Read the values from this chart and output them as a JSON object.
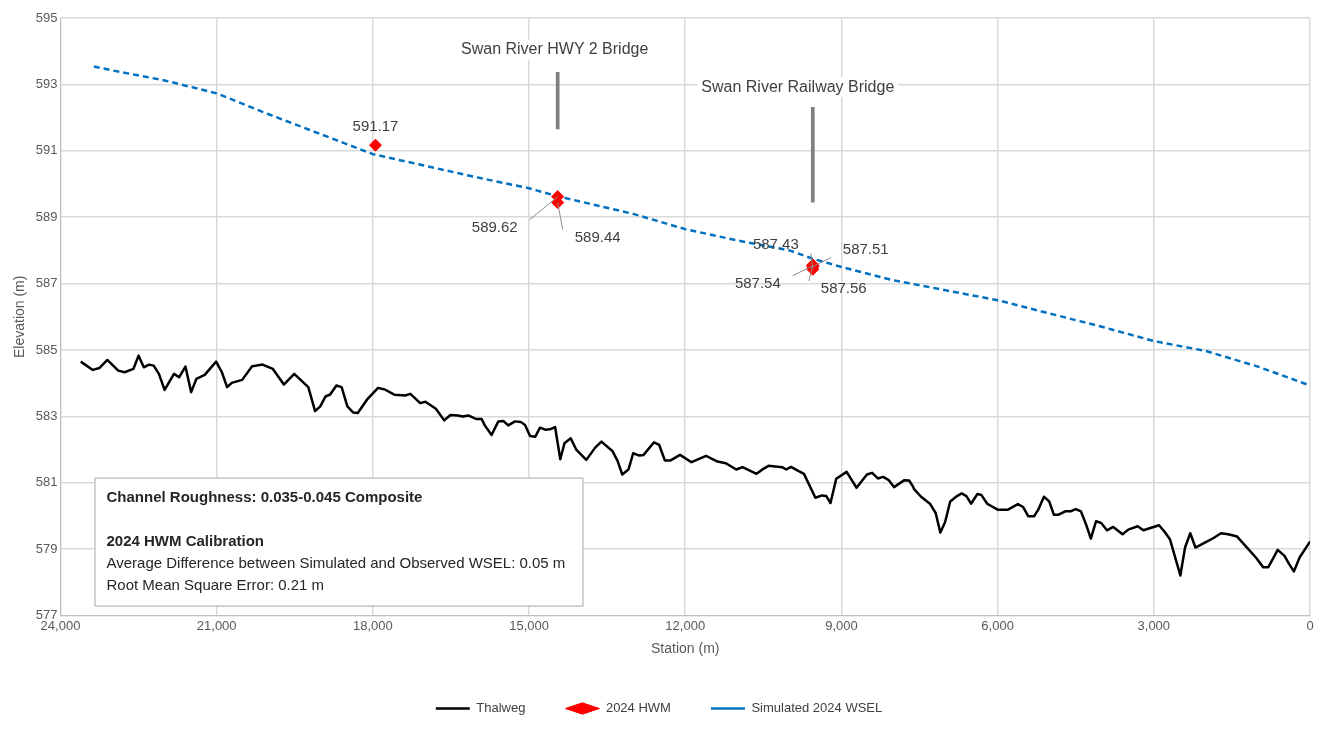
{
  "chart_data": {
    "type": "line",
    "xlabel": "Station (m)",
    "ylabel": "Elevation (m)",
    "xlim": [
      24000,
      0
    ],
    "xticks": [
      {
        "value": 24000,
        "label": "24,000"
      },
      {
        "value": 21000,
        "label": "21,000"
      },
      {
        "value": 18000,
        "label": "18,000"
      },
      {
        "value": 15000,
        "label": "15,000"
      },
      {
        "value": 12000,
        "label": "12,000"
      },
      {
        "value": 9000,
        "label": "9,000"
      },
      {
        "value": 6000,
        "label": "6,000"
      },
      {
        "value": 3000,
        "label": "3,000"
      },
      0
    ],
    "ylim": [
      577,
      595
    ],
    "yticks": [
      577,
      579,
      581,
      583,
      585,
      587,
      589,
      591,
      593,
      595
    ],
    "grid": true,
    "legend": "bottom",
    "annotations": [
      "Swan River HWY 2 Bridge",
      "Swan River Railway Bridge",
      "Channel Roughness: 0.035-0.045 Composite",
      "2024 HWM Calibration",
      "Average Difference between Simulated and Observed WSEL: 0.05 m",
      "Root Mean Square Error: 0.21 m"
    ],
    "series": [
      {
        "name": "Thalweg",
        "color": "#000000",
        "marker": "none",
        "line_style": "solid",
        "x": [
          23610,
          23380,
          23250,
          23100,
          22890,
          22770,
          22600,
          22500,
          22400,
          22300,
          22210,
          22110,
          22000,
          21820,
          21720,
          21600,
          21490,
          21390,
          21230,
          21010,
          20900,
          20800,
          20710,
          20510,
          20320,
          20120,
          19920,
          19710,
          19510,
          19240,
          19110,
          19010,
          18910,
          18820,
          18700,
          18600,
          18490,
          18380,
          18290,
          18100,
          17900,
          17770,
          17580,
          17380,
          17280,
          17090,
          16990,
          16790,
          16630,
          16510,
          16370,
          16270,
          16170,
          16010,
          15910,
          15850,
          15720,
          15590,
          15490,
          15400,
          15270,
          15160,
          15080,
          14980,
          14880,
          14790,
          14690,
          14600,
          14500,
          14400,
          14320,
          14200,
          14090,
          13900,
          13730,
          13610,
          13400,
          13300,
          13210,
          13090,
          13000,
          12880,
          12800,
          12600,
          12500,
          12390,
          12290,
          12100,
          11880,
          11600,
          11380,
          11220,
          11020,
          10900,
          10630,
          10500,
          10400,
          10140,
          10060,
          9970,
          9820,
          9720,
          9500,
          9370,
          9290,
          9210,
          9100,
          8900,
          8710,
          8510,
          8410,
          8300,
          8200,
          8090,
          7990,
          7790,
          7700,
          7630,
          7600,
          7470,
          7300,
          7190,
          7100,
          7010,
          6910,
          6780,
          6690,
          6600,
          6510,
          6390,
          6310,
          6200,
          6000,
          5800,
          5610,
          5510,
          5410,
          5300,
          5220,
          5110,
          5010,
          4920,
          4830,
          4700,
          4600,
          4500,
          4400,
          4300,
          4210,
          4110,
          4010,
          3900,
          3780,
          3600,
          3490,
          3310,
          3200,
          2900,
          2800,
          2690,
          2580,
          2490,
          2400,
          2300,
          2200,
          2020,
          1860,
          1710,
          1570,
          1400,
          1210,
          1040,
          900,
          800,
          620,
          490,
          400,
          310,
          200,
          0
        ],
        "values": [
          584.65,
          584.4,
          584.46,
          584.7,
          584.38,
          584.33,
          584.43,
          584.83,
          584.48,
          584.56,
          584.53,
          584.28,
          583.8,
          584.28,
          584.18,
          584.5,
          583.73,
          584.13,
          584.25,
          584.65,
          584.33,
          583.88,
          584.01,
          584.1,
          584.51,
          584.56,
          584.43,
          583.96,
          584.28,
          583.88,
          583.16,
          583.3,
          583.6,
          583.66,
          583.93,
          583.88,
          583.3,
          583.12,
          583.1,
          583.53,
          583.86,
          583.81,
          583.65,
          583.63,
          583.68,
          583.4,
          583.44,
          583.23,
          582.88,
          583.04,
          583.03,
          583.0,
          583.03,
          582.92,
          582.92,
          582.73,
          582.44,
          582.85,
          582.86,
          582.73,
          582.85,
          582.83,
          582.75,
          582.41,
          582.39,
          582.66,
          582.6,
          582.61,
          582.68,
          581.71,
          582.19,
          582.34,
          581.99,
          581.69,
          582.06,
          582.24,
          581.96,
          581.66,
          581.25,
          581.4,
          581.89,
          581.82,
          581.84,
          582.22,
          582.14,
          581.67,
          581.67,
          581.84,
          581.62,
          581.81,
          581.64,
          581.59,
          581.4,
          581.47,
          581.27,
          581.42,
          581.51,
          581.47,
          581.4,
          581.48,
          581.35,
          581.27,
          580.55,
          580.62,
          580.6,
          580.39,
          581.12,
          581.33,
          580.85,
          581.25,
          581.3,
          581.13,
          581.18,
          581.08,
          580.87,
          581.08,
          581.07,
          580.9,
          580.8,
          580.58,
          580.37,
          580.09,
          579.5,
          579.81,
          580.44,
          580.6,
          580.68,
          580.6,
          580.37,
          580.66,
          580.63,
          580.37,
          580.19,
          580.19,
          580.36,
          580.27,
          579.99,
          579.99,
          580.19,
          580.58,
          580.44,
          580.04,
          580.04,
          580.14,
          580.14,
          580.21,
          580.14,
          579.74,
          579.32,
          579.84,
          579.79,
          579.57,
          579.67,
          579.45,
          579.59,
          579.69,
          579.57,
          579.72,
          579.54,
          579.3,
          578.7,
          578.21,
          579.05,
          579.48,
          579.05,
          579.2,
          579.33,
          579.48,
          579.45,
          579.38,
          579.05,
          578.75,
          578.46,
          578.46,
          578.98,
          578.8,
          578.55,
          578.33,
          578.75,
          579.23
        ]
      },
      {
        "name": "2024 HWM",
        "type": "scatter",
        "color": "#ff0000",
        "marker": "diamond",
        "x": [
          17950,
          14450,
          14450,
          9550,
          9550,
          9550,
          9550
        ],
        "values": [
          591.17,
          589.62,
          589.44,
          587.43,
          587.51,
          587.54,
          587.56
        ],
        "value_labels": [
          "591.17",
          "589.62",
          "589.44",
          "587.43",
          "587.51",
          "587.54",
          "587.56"
        ]
      },
      {
        "name": "Simulated 2024 WSEL",
        "color": "#0070c0",
        "marker": "none",
        "line_style": "dashed",
        "x": [
          23360,
          23000,
          22000,
          21000,
          20000,
          19000,
          18000,
          17000,
          16000,
          15000,
          14450,
          13000,
          12000,
          11000,
          10000,
          9550,
          9000,
          8000,
          7000,
          6000,
          5000,
          4000,
          3000,
          2000,
          1000,
          0
        ],
        "values": [
          593.54,
          593.42,
          593.12,
          592.73,
          592.1,
          591.5,
          590.9,
          590.55,
          590.2,
          589.87,
          589.63,
          589.1,
          588.64,
          588.3,
          588.0,
          587.75,
          587.5,
          587.1,
          586.8,
          586.5,
          586.1,
          585.7,
          585.27,
          584.97,
          584.5,
          583.93
        ]
      },
      {
        "type": "bar",
        "color": "#7f7f7f",
        "x": [
          14450,
          9550
        ],
        "base": [
          591.66,
          589.45
        ],
        "values": [
          1.7,
          2.86
        ]
      }
    ]
  }
}
